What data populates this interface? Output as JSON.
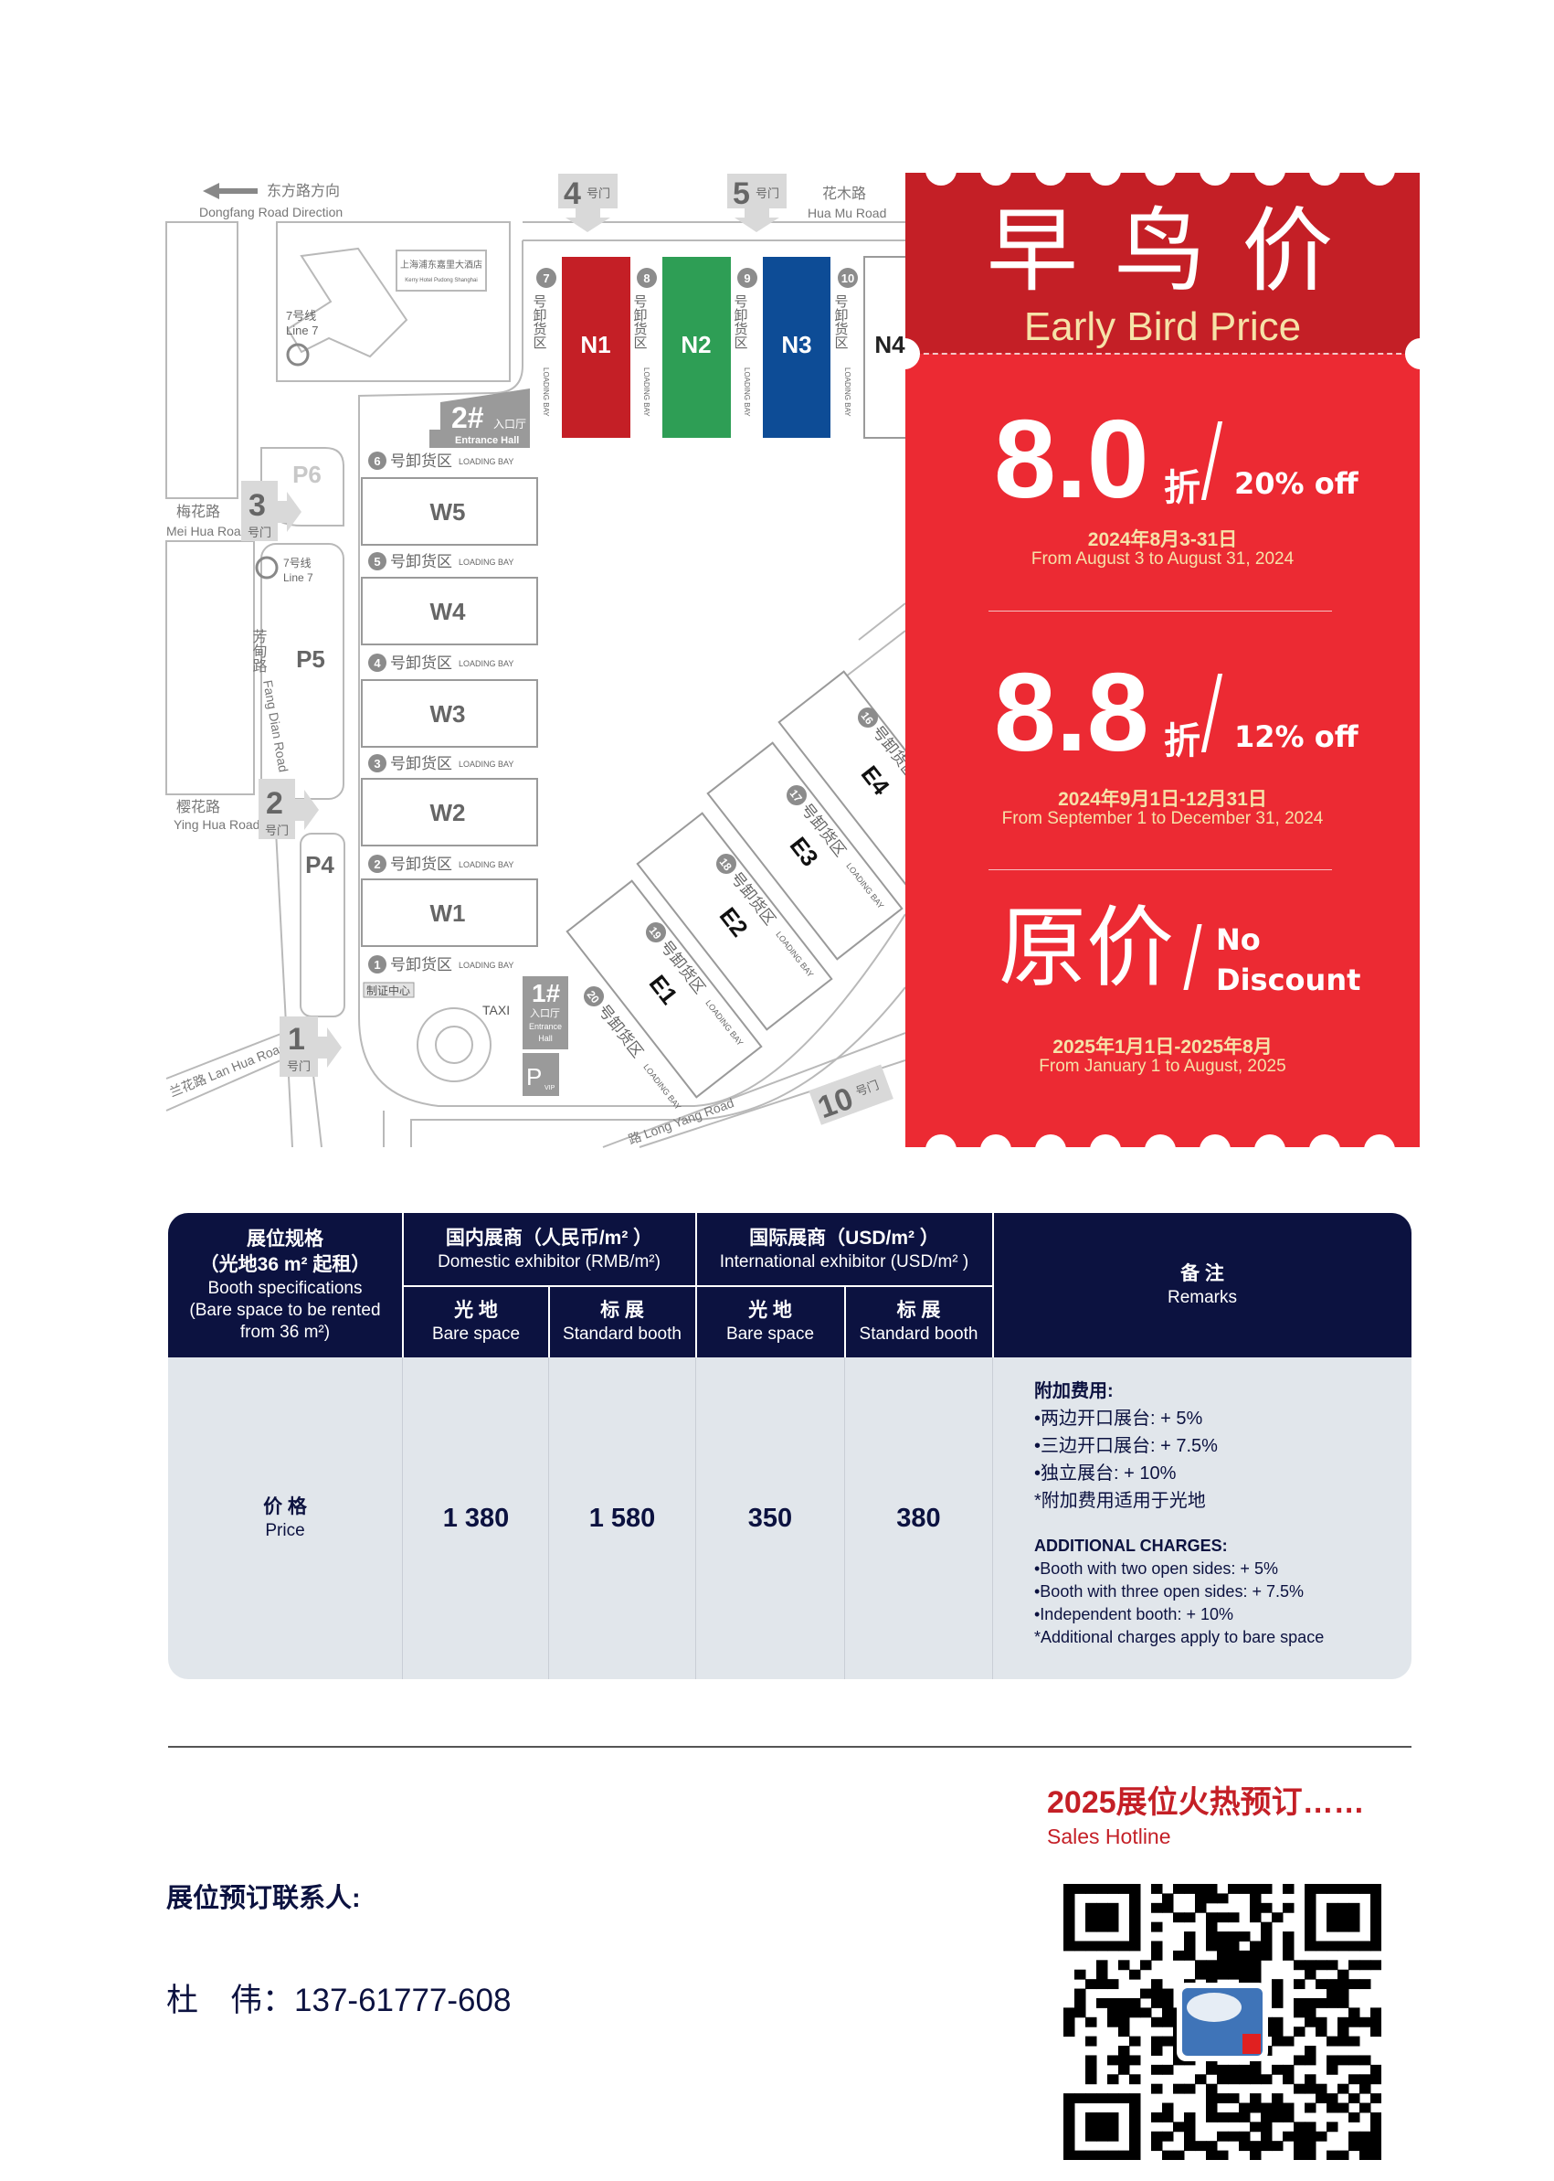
{
  "map": {
    "dongfang_zh": "东方路方向",
    "dongfang_en": "Dongfang Road Direction",
    "huamu_zh": "花木路",
    "huamu_en": "Hua Mu Road",
    "meihua_zh": "梅花路",
    "meihua_en": "Mei Hua Road",
    "yinghua_zh": "樱花路",
    "yinghua_en": "Ying Hua Road",
    "lanhua": "兰花路 Lan Hua Road",
    "fangdian_zh": "芳甸路",
    "fangdian_en": "Fang Dian Road",
    "longyang": "路 Long Yang Road",
    "gate_suffix": "号门",
    "gates": [
      "1",
      "2",
      "3",
      "4",
      "5",
      "10"
    ],
    "hotel_zh": "上海浦东嘉里大酒店",
    "hotel_en": "Kerry Hotel Pudong Shanghai",
    "metro_zh": "7号线",
    "metro_en": "Line 7",
    "parking": [
      "P4",
      "P5",
      "P6"
    ],
    "north_halls": [
      "N1",
      "N2",
      "N3",
      "N4"
    ],
    "west_halls": [
      "W5",
      "W4",
      "W3",
      "W2",
      "W1"
    ],
    "east_halls": [
      "E1",
      "E2",
      "E3",
      "E4"
    ],
    "loading_zh": "号卸货区",
    "loading_en": "LOADING BAY",
    "north_bays": [
      "7",
      "8",
      "9",
      "10"
    ],
    "west_bays": [
      "6",
      "5",
      "4",
      "3",
      "2",
      "1"
    ],
    "east_bays": [
      "20",
      "19",
      "18",
      "17",
      "16"
    ],
    "entrance_2": "2#",
    "entrance_1": "1#",
    "entrance_zh": "入口厅",
    "entrance_en": "Entrance Hall",
    "entrance_en_a": "Entrance",
    "entrance_en_b": "Hall",
    "cert_center": "制证中心",
    "taxi": "TAXI",
    "vip_p": "P",
    "vip_sub": "VIP",
    "colors": {
      "N1": "#c41f26",
      "N2": "#2e9e55",
      "N3": "#0d4c96"
    }
  },
  "promo": {
    "title_zh": "早 鸟 价",
    "title_en": "Early Bird Price",
    "tiers": [
      {
        "discount": "8.0",
        "unit": "折",
        "off": "20% off",
        "date_zh": "2024年8月3-31日",
        "date_en": "From August 3 to August 31, 2024"
      },
      {
        "discount": "8.8",
        "unit": "折",
        "off": "12% off",
        "date_zh": "2024年9月1日-12月31日",
        "date_en": "From September 1 to December 31, 2024"
      },
      {
        "discount": "原价",
        "off_a": "No",
        "off_b": "Discount",
        "date_zh": "2025年1月1日-2025年8月",
        "date_en": "From January 1 to August, 2025"
      }
    ],
    "colors": {
      "top": "#c41f26",
      "body": "#ec2a33",
      "accent_text": "#f6e2a8"
    }
  },
  "table": {
    "spec_zh": "展位规格",
    "spec_zh2": "（光地36 m² 起租）",
    "spec_en": "Booth specifications",
    "spec_en2": "(Bare space to be rented",
    "spec_en3": "from 36 m²)",
    "domestic_zh": "国内展商（人民币/m² ）",
    "domestic_en": "Domestic exhibitor (RMB/m²)",
    "intl_zh": "国际展商（USD/m² ）",
    "intl_en": "International exhibitor (USD/m² )",
    "sub": [
      {
        "zh": "光 地",
        "en": "Bare space"
      },
      {
        "zh": "标 展",
        "en": "Standard booth"
      },
      {
        "zh": "光 地",
        "en": "Bare space"
      },
      {
        "zh": "标 展",
        "en": "Standard booth"
      }
    ],
    "remarks_zh": "备 注",
    "remarks_en": "Remarks",
    "row_zh": "价 格",
    "row_en": "Price",
    "prices": [
      "1 380",
      "1 580",
      "350",
      "380"
    ],
    "remarks": {
      "zh_title": "附加费用:",
      "zh_items": [
        "•两边开口展台: + 5%",
        "•三边开口展台: + 7.5%",
        "•独立展台: + 10%",
        "*附加费用适用于光地"
      ],
      "en_title": "ADDITIONAL CHARGES:",
      "en_items": [
        "•Booth with two open sides: + 5%",
        "•Booth with three open sides: + 7.5%",
        "•Independent booth: + 10%",
        "*Additional charges apply to bare space"
      ]
    },
    "colors": {
      "header": "#0c1240",
      "body": "#e1e6eb"
    }
  },
  "footer": {
    "hot_title": "2025展位火热预订……",
    "hotline": "Sales Hotline",
    "contact_label": "展位预订联系人:",
    "contact_name": "杜　伟：",
    "contact_phone": "137-61777-608",
    "colors": {
      "hot": "#c41f26",
      "text": "#0c1240"
    }
  }
}
